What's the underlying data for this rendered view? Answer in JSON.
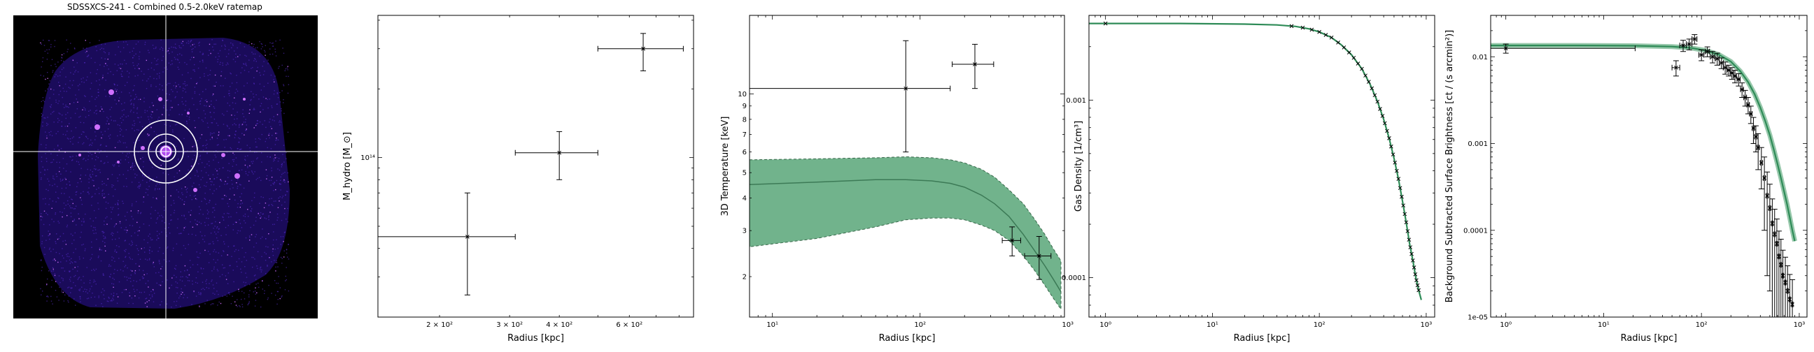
{
  "ratemap": {
    "title": "SDSSXCS-241 - Combined 0.5-2.0keV ratemap",
    "colors": {
      "background": "#000000",
      "crosshair": "#ffffff",
      "circles": "#ffffff",
      "photons": "#5b2fd6",
      "bright": "#d070ff"
    }
  },
  "chart_data": [
    {
      "type": "scatter",
      "xlabel": "Radius [kpc]",
      "ylabel": "M_hydro [M_⊙]",
      "xscale": "log",
      "yscale": "log",
      "xlim": [
        140,
        870
      ],
      "ylim": [
        20000000000000.0,
        420000000000000.0
      ],
      "xtick_labels": [
        "2 × 10²",
        "3 × 10²",
        "4 × 10²",
        "6 × 10²"
      ],
      "xtick_values": [
        200,
        300,
        400,
        600
      ],
      "ytick_labels": [
        "10¹⁴"
      ],
      "ytick_values": [
        100000000000000.0
      ],
      "points": [
        {
          "x": 235,
          "xerr": [
            95,
            75
          ],
          "y": 45000000000000.0,
          "yerr": [
            20000000000000.0,
            25000000000000.0
          ]
        },
        {
          "x": 400,
          "xerr": [
            90,
            100
          ],
          "y": 105000000000000.0,
          "yerr": [
            25000000000000.0,
            25000000000000.0
          ]
        },
        {
          "x": 650,
          "xerr": [
            150,
            170
          ],
          "y": 300000000000000.0,
          "yerr": [
            60000000000000.0,
            50000000000000.0
          ]
        }
      ]
    },
    {
      "type": "scatter",
      "xlabel": "Radius [kpc]",
      "ylabel": "3D Temperature [keV]",
      "xscale": "log",
      "yscale": "log",
      "xlim": [
        7,
        950
      ],
      "ylim": [
        1.4,
        20
      ],
      "xtick_labels": [
        "10¹",
        "10²",
        "10³"
      ],
      "xtick_values": [
        10,
        100,
        1000
      ],
      "ytick_labels": [
        "2",
        "3",
        "4",
        "5",
        "6",
        "7",
        "8",
        "9",
        "10"
      ],
      "ytick_values": [
        2,
        3,
        4,
        5,
        6,
        7,
        8,
        9,
        10
      ],
      "points": [
        {
          "x": 80,
          "xerr": [
            73,
            80
          ],
          "y": 10.5,
          "yerr": [
            4.5,
            5.5
          ]
        },
        {
          "x": 235,
          "xerr": [
            70,
            80
          ],
          "y": 13,
          "yerr": [
            2.5,
            2.5
          ]
        },
        {
          "x": 420,
          "xerr": [
            60,
            60
          ],
          "y": 2.75,
          "yerr": [
            0.35,
            0.35
          ]
        },
        {
          "x": 640,
          "xerr": [
            130,
            130
          ],
          "y": 2.4,
          "yerr": [
            0.45,
            0.45
          ]
        }
      ],
      "model": {
        "x": [
          7,
          20,
          50,
          80,
          120,
          160,
          200,
          260,
          320,
          400,
          500,
          600,
          700,
          800,
          900
        ],
        "median": [
          4.5,
          4.6,
          4.7,
          4.7,
          4.65,
          4.55,
          4.4,
          4.1,
          3.8,
          3.4,
          2.9,
          2.5,
          2.2,
          1.95,
          1.75
        ],
        "lower": [
          2.6,
          2.8,
          3.1,
          3.3,
          3.35,
          3.35,
          3.3,
          3.15,
          3.0,
          2.75,
          2.4,
          2.1,
          1.85,
          1.65,
          1.5
        ],
        "upper": [
          5.6,
          5.65,
          5.7,
          5.75,
          5.7,
          5.6,
          5.45,
          5.15,
          4.8,
          4.3,
          3.8,
          3.3,
          2.9,
          2.55,
          2.3
        ]
      },
      "colors": {
        "band": "#6aaf86",
        "line": "#3c7a56",
        "points": "#000000"
      }
    },
    {
      "type": "line",
      "xlabel": "Radius [kpc]",
      "ylabel": "Gas Density [1/cm³]",
      "xscale": "log",
      "yscale": "log",
      "xlim": [
        0.7,
        1200
      ],
      "ylim": [
        6e-05,
        0.003
      ],
      "xtick_labels": [
        "10⁰",
        "10¹",
        "10²",
        "10³"
      ],
      "xtick_values": [
        1,
        10,
        100,
        1000
      ],
      "ytick_labels": [
        "0.001",
        "0.0001"
      ],
      "ytick_values": [
        0.001,
        0.0001
      ],
      "model": {
        "x": [
          0.7,
          1,
          5,
          20,
          40,
          60,
          80,
          100,
          130,
          160,
          200,
          250,
          300,
          350,
          400,
          450,
          500,
          550,
          600,
          650,
          700,
          750,
          800,
          850,
          900
        ],
        "y": [
          0.0027,
          0.0027,
          0.0027,
          0.00268,
          0.00265,
          0.0026,
          0.00252,
          0.00242,
          0.00225,
          0.00205,
          0.0018,
          0.0015,
          0.00122,
          0.00098,
          0.00078,
          0.00061,
          0.00047,
          0.00036,
          0.00027,
          0.000205,
          0.000155,
          0.000125,
          0.0001,
          8.5e-05,
          7.5e-05
        ]
      },
      "points_x": [
        1,
        55,
        70,
        85,
        100,
        115,
        130,
        150,
        170,
        190,
        210,
        230,
        250,
        270,
        290,
        310,
        330,
        350,
        370,
        390,
        410,
        430,
        450,
        470,
        490,
        510,
        530,
        550,
        570,
        590,
        610,
        630,
        650,
        670,
        690,
        710,
        730,
        750,
        770,
        790,
        810,
        830,
        850
      ],
      "colors": {
        "line": "#2e8b57",
        "points": "#000000"
      }
    },
    {
      "type": "scatter",
      "xlabel": "Radius [kpc]",
      "ylabel": "Background Subtracted Surface Brightness [ct / (s arcmin²)]",
      "xscale": "log",
      "yscale": "log",
      "xlim": [
        0.7,
        1200
      ],
      "ylim": [
        1e-05,
        0.03
      ],
      "xtick_labels": [
        "10⁰",
        "10¹",
        "10²",
        "10³"
      ],
      "xtick_values": [
        1,
        10,
        100,
        1000
      ],
      "ytick_labels": [
        "0.01",
        "0.001",
        "0.0001",
        "1e-05"
      ],
      "ytick_values": [
        0.01,
        0.001,
        0.0001,
        1e-05
      ],
      "model": {
        "x": [
          0.7,
          1,
          5,
          20,
          50,
          80,
          110,
          150,
          200,
          250,
          300,
          350,
          400,
          450,
          500,
          550,
          600,
          650,
          700,
          750,
          800,
          850,
          900
        ],
        "y": [
          0.0135,
          0.0135,
          0.0135,
          0.0134,
          0.0131,
          0.0126,
          0.0118,
          0.0106,
          0.0088,
          0.0068,
          0.0051,
          0.0037,
          0.0026,
          0.0018,
          0.00125,
          0.00085,
          0.00058,
          0.0004,
          0.00028,
          0.0002,
          0.00014,
          0.0001,
          7.5e-05
        ]
      },
      "points": [
        {
          "x": 1,
          "y": 0.0125,
          "yerr": 0.0015,
          "xerr": [
            0.3,
            20
          ]
        },
        {
          "x": 55,
          "y": 0.0075,
          "yerr": 0.0015,
          "xerr": [
            5,
            5
          ]
        },
        {
          "x": 65,
          "y": 0.0135,
          "yerr": 0.002,
          "xerr": [
            5,
            5
          ]
        },
        {
          "x": 75,
          "y": 0.014,
          "yerr": 0.002,
          "xerr": [
            5,
            5
          ]
        },
        {
          "x": 85,
          "y": 0.016,
          "yerr": 0.002,
          "xerr": [
            5,
            5
          ]
        },
        {
          "x": 100,
          "y": 0.0105,
          "yerr": 0.0015,
          "xerr": [
            6,
            6
          ]
        },
        {
          "x": 115,
          "y": 0.0115,
          "yerr": 0.0015,
          "xerr": [
            6,
            6
          ]
        },
        {
          "x": 130,
          "y": 0.01,
          "yerr": 0.0015,
          "xerr": [
            7,
            7
          ]
        },
        {
          "x": 145,
          "y": 0.0095,
          "yerr": 0.0015,
          "xerr": [
            7,
            7
          ]
        },
        {
          "x": 160,
          "y": 0.0085,
          "yerr": 0.0012,
          "xerr": [
            8,
            8
          ]
        },
        {
          "x": 175,
          "y": 0.0075,
          "yerr": 0.0012,
          "xerr": [
            8,
            8
          ]
        },
        {
          "x": 190,
          "y": 0.007,
          "yerr": 0.001,
          "xerr": [
            8,
            8
          ]
        },
        {
          "x": 205,
          "y": 0.0065,
          "yerr": 0.001,
          "xerr": [
            8,
            8
          ]
        },
        {
          "x": 220,
          "y": 0.006,
          "yerr": 0.001,
          "xerr": [
            8,
            8
          ]
        },
        {
          "x": 240,
          "y": 0.0055,
          "yerr": 0.0009,
          "xerr": [
            9,
            9
          ]
        },
        {
          "x": 260,
          "y": 0.0042,
          "yerr": 0.0008,
          "xerr": [
            9,
            9
          ]
        },
        {
          "x": 280,
          "y": 0.0034,
          "yerr": 0.0007,
          "xerr": [
            9,
            9
          ]
        },
        {
          "x": 300,
          "y": 0.0028,
          "yerr": 0.0006,
          "xerr": [
            9,
            9
          ]
        },
        {
          "x": 320,
          "y": 0.0022,
          "yerr": 0.0005,
          "xerr": [
            9,
            9
          ]
        },
        {
          "x": 340,
          "y": 0.0015,
          "yerr": 0.0005,
          "xerr": [
            9,
            9
          ]
        },
        {
          "x": 360,
          "y": 0.0012,
          "yerr": 0.0004,
          "xerr": [
            9,
            9
          ]
        },
        {
          "x": 380,
          "y": 0.0009,
          "yerr": 0.0004,
          "xerr": [
            9,
            9
          ]
        },
        {
          "x": 410,
          "y": 0.0006,
          "yerr": 0.0003,
          "xerr": [
            10,
            10
          ]
        },
        {
          "x": 440,
          "y": 0.0004,
          "yerr": 0.0003,
          "xerr": [
            10,
            10
          ]
        },
        {
          "x": 470,
          "y": 0.00025,
          "yerr": 0.00022,
          "xerr": [
            10,
            10
          ]
        },
        {
          "x": 500,
          "y": 0.00018,
          "yerr": 0.00016,
          "xerr": [
            10,
            10
          ]
        },
        {
          "x": 530,
          "y": 0.00012,
          "yerr": 0.00011,
          "xerr": [
            10,
            10
          ]
        },
        {
          "x": 560,
          "y": 9e-05,
          "yerr": 8.5e-05,
          "xerr": [
            10,
            10
          ]
        },
        {
          "x": 590,
          "y": 7e-05,
          "yerr": 6.5e-05,
          "xerr": [
            10,
            10
          ]
        },
        {
          "x": 620,
          "y": 5e-05,
          "yerr": 4.8e-05,
          "xerr": [
            10,
            10
          ]
        },
        {
          "x": 650,
          "y": 4e-05,
          "yerr": 3.9e-05,
          "xerr": [
            10,
            10
          ]
        },
        {
          "x": 680,
          "y": 3e-05,
          "yerr": 2.9e-05,
          "xerr": [
            10,
            10
          ]
        },
        {
          "x": 720,
          "y": 2.5e-05,
          "yerr": 2.4e-05,
          "xerr": [
            12,
            12
          ]
        },
        {
          "x": 760,
          "y": 2e-05,
          "yerr": 1.9e-05,
          "xerr": [
            12,
            12
          ]
        },
        {
          "x": 800,
          "y": 1.6e-05,
          "yerr": 1.5e-05,
          "xerr": [
            12,
            12
          ]
        },
        {
          "x": 850,
          "y": 1.4e-05,
          "yerr": 1.3e-05,
          "xerr": [
            14,
            14
          ]
        }
      ],
      "colors": {
        "band": "#6aaf86",
        "line": "#2e8b57",
        "points": "#000000"
      }
    }
  ]
}
